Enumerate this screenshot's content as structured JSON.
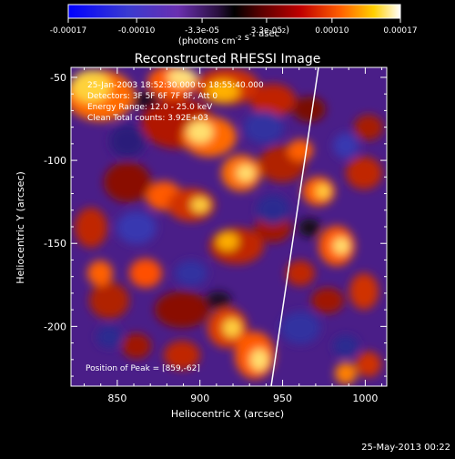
{
  "colorbar": {
    "tick_labels": [
      "-0.00017",
      "-0.00010",
      "-3.3e-05",
      "3.3e-05",
      "0.00010",
      "0.00017"
    ],
    "units_prefix": "(photons cm",
    "units_sup1": "-2",
    "units_mid": " s",
    "units_sup2": "-1",
    "units_mid2": " asec",
    "units_sup3": "-2",
    "units_suffix": ")",
    "colors": [
      "#0000ff",
      "#4b2aa6",
      "#6a2fb0",
      "#000000",
      "#7a0000",
      "#d40000",
      "#ff5a00",
      "#ffcf00",
      "#ffffff"
    ]
  },
  "plot": {
    "title": "Reconstructed RHESSI Image",
    "xlabel": "Heliocentric X (arcsec)",
    "ylabel": "Heliocentric Y (arcsec)",
    "x_ticks": [
      "850",
      "900",
      "950",
      "1000"
    ],
    "y_ticks": [
      "-50",
      "-100",
      "-150",
      "-200"
    ],
    "annotation_lines": [
      "25-Jan-2003 18:52:30.000 to 18:55:40.000",
      "Detectors: 3F 5F 6F 7F 8F, Att 0",
      "Energy Range: 12.0 - 25.0 keV",
      "Clean     Total counts: 3.92E+03"
    ],
    "peak_label": "Position of Peak = [859,-62]"
  },
  "footer": {
    "timestamp": "25-May-2013 00:22"
  },
  "chart_data": {
    "type": "heatmap",
    "title": "Reconstructed RHESSI Image",
    "xlabel": "Heliocentric X (arcsec)",
    "ylabel": "Heliocentric Y (arcsec)",
    "xlim": [
      822,
      1013
    ],
    "ylim": [
      -236,
      -44
    ],
    "x_ticks": [
      850,
      900,
      950,
      1000
    ],
    "y_ticks": [
      -50,
      -100,
      -150,
      -200
    ],
    "colorbar_ticks": [
      -0.00017,
      -0.0001,
      -3.3e-05,
      3.3e-05,
      0.0001,
      0.00017
    ],
    "colorbar_range": [
      -0.00017,
      0.00017
    ],
    "peak": [
      859,
      -62
    ],
    "limb_line": [
      [
        973,
        -44
      ],
      [
        945,
        -236
      ]
    ]
  }
}
